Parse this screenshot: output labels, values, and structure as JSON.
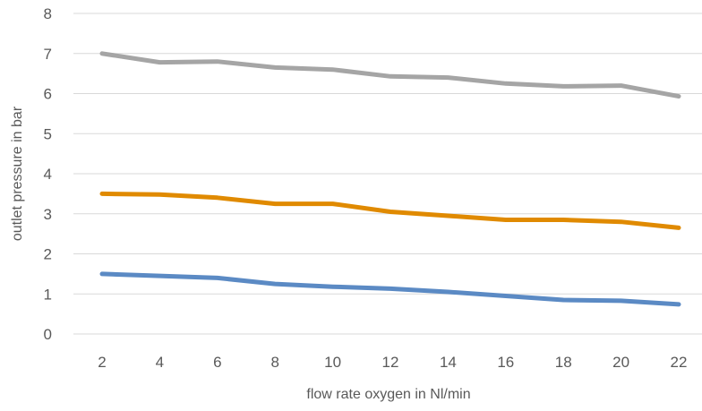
{
  "chart_data": {
    "type": "line",
    "title": "",
    "xlabel": "flow rate oxygen in Nl/min",
    "ylabel": "outlet pressure in bar",
    "x": [
      2,
      4,
      6,
      8,
      10,
      12,
      14,
      16,
      18,
      20,
      22
    ],
    "x_tick_labels": [
      "2",
      "4",
      "6",
      "8",
      "10",
      "12",
      "14",
      "16",
      "18",
      "20",
      "22"
    ],
    "y_ticks": [
      0,
      1,
      2,
      3,
      4,
      5,
      6,
      7,
      8
    ],
    "y_tick_labels": [
      "0",
      "1",
      "2",
      "3",
      "4",
      "5",
      "6",
      "7",
      "8"
    ],
    "ylim": [
      0,
      8
    ],
    "grid": "horizontal",
    "legend": "none",
    "series": [
      {
        "color": "#a5a5a5",
        "values": [
          7.0,
          6.78,
          6.8,
          6.65,
          6.6,
          6.43,
          6.4,
          6.25,
          6.18,
          6.2,
          5.93
        ]
      },
      {
        "color": "#e08a00",
        "values": [
          3.5,
          3.48,
          3.4,
          3.25,
          3.25,
          3.05,
          2.95,
          2.85,
          2.85,
          2.8,
          2.65
        ]
      },
      {
        "color": "#5b8ac4",
        "values": [
          1.5,
          1.45,
          1.4,
          1.25,
          1.18,
          1.13,
          1.05,
          0.95,
          0.85,
          0.83,
          0.74
        ]
      }
    ]
  }
}
